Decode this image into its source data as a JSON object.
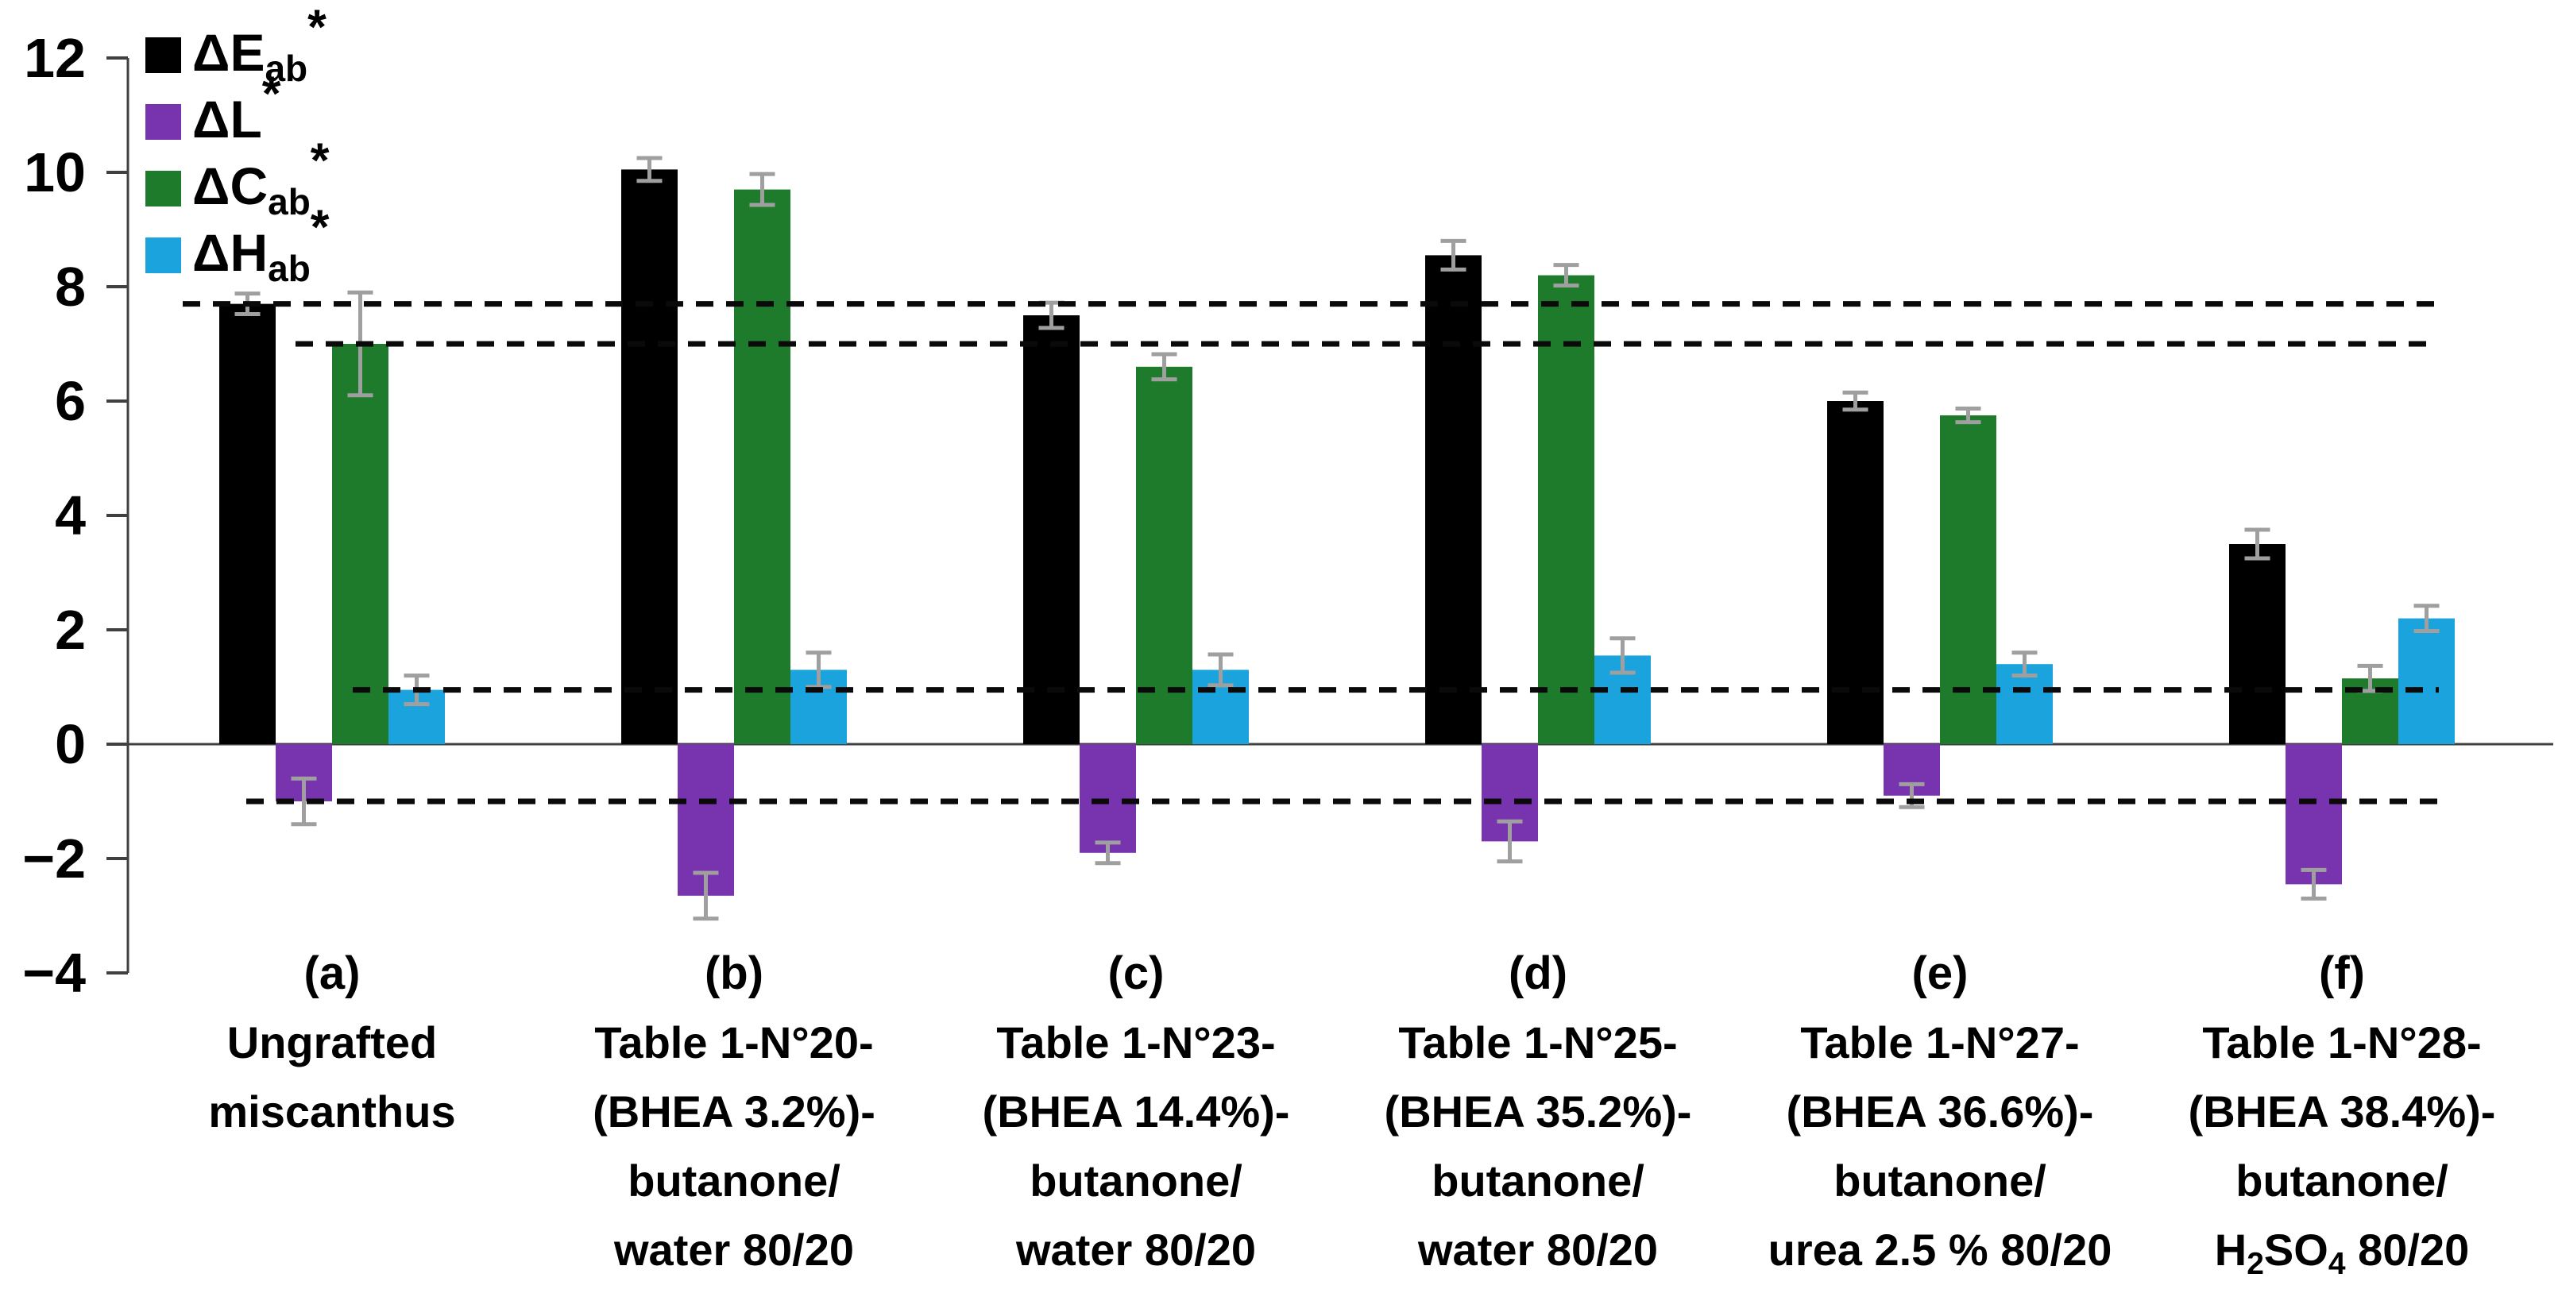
{
  "figure": {
    "background": "#ffffff",
    "description_colors": {
      "axis": "#404040",
      "reference_line": "#0a0a0a",
      "error_bar": "#9f9f9f",
      "text": "#000000"
    }
  },
  "chart_data": {
    "type": "bar",
    "orientation": "vertical",
    "title": "",
    "xlabel": "",
    "ylabel": "",
    "ylim": [
      -4,
      12
    ],
    "grid": false,
    "legend_position": "top-left-inside",
    "yticks": [
      {
        "v": 12,
        "label": "12"
      },
      {
        "v": 10,
        "label": "10"
      },
      {
        "v": 8,
        "label": "8"
      },
      {
        "v": 6,
        "label": "6"
      },
      {
        "v": 4,
        "label": "4"
      },
      {
        "v": 2,
        "label": "2"
      },
      {
        "v": 0,
        "label": "0"
      },
      {
        "v": -2,
        "label": "−2"
      },
      {
        "v": -4,
        "label": "−4"
      }
    ],
    "categories": [
      {
        "key": "a",
        "lines": [
          "(a)",
          "Ungrafted",
          "miscanthus"
        ]
      },
      {
        "key": "b",
        "lines": [
          "(b)",
          "Table 1-N°20-",
          "(BHEA 3.2%)-",
          "butanone/",
          "water 80/20"
        ]
      },
      {
        "key": "c",
        "lines": [
          "(c)",
          "Table 1-N°23-",
          "(BHEA 14.4%)-",
          "butanone/",
          "water 80/20"
        ]
      },
      {
        "key": "d",
        "lines": [
          "(d)",
          "Table 1-N°25-",
          "(BHEA 35.2%)-",
          "butanone/",
          "water 80/20"
        ]
      },
      {
        "key": "e",
        "lines": [
          "(e)",
          "Table 1-N°27-",
          "(BHEA 36.6%)-",
          "butanone/",
          "urea 2.5 % 80/20"
        ]
      },
      {
        "key": "f",
        "lines": [
          "(f)",
          "Table 1-N°28-",
          "(BHEA 38.4%)-",
          "butanone/",
          {
            "parts": [
              {
                "t": "H"
              },
              {
                "t": "2",
                "sub": true
              },
              {
                "t": "SO"
              },
              {
                "t": "4",
                "sub": true
              },
              {
                "t": " 80/20"
              }
            ]
          }
        ]
      }
    ],
    "series": [
      {
        "key": "delta-e-ab",
        "label_parts": [
          {
            "t": "ΔE"
          },
          {
            "t": "ab",
            "sub": true
          },
          {
            "t": "*",
            "sup": true
          }
        ],
        "color": "#000000",
        "values": [
          7.7,
          10.05,
          7.5,
          8.55,
          6.0,
          3.5
        ],
        "errors": [
          0.18,
          0.2,
          0.22,
          0.25,
          0.15,
          0.25
        ]
      },
      {
        "key": "delta-l",
        "label_parts": [
          {
            "t": "ΔL"
          },
          {
            "t": "*",
            "sup": true
          }
        ],
        "color": "#7833ae",
        "values": [
          -1.0,
          -2.65,
          -1.9,
          -1.7,
          -0.9,
          -2.45
        ],
        "errors": [
          0.4,
          0.4,
          0.18,
          0.35,
          0.2,
          0.25
        ]
      },
      {
        "key": "delta-c-ab",
        "label_parts": [
          {
            "t": "ΔC"
          },
          {
            "t": "ab",
            "sub": true
          },
          {
            "t": "*",
            "sup": true
          }
        ],
        "color": "#1e7b2c",
        "values": [
          7.0,
          9.7,
          6.6,
          8.2,
          5.75,
          1.15
        ],
        "errors": [
          0.9,
          0.27,
          0.22,
          0.18,
          0.12,
          0.22
        ]
      },
      {
        "key": "delta-h-ab",
        "label_parts": [
          {
            "t": "ΔH"
          },
          {
            "t": "ab",
            "sub": true
          },
          {
            "t": "*",
            "sup": true
          }
        ],
        "color": "#1aa3dc",
        "values": [
          0.95,
          1.3,
          1.3,
          1.55,
          1.4,
          2.2
        ],
        "errors": [
          0.25,
          0.3,
          0.27,
          0.3,
          0.2,
          0.22
        ]
      }
    ],
    "reference_lines": [
      {
        "v": 7.7,
        "series": "delta-e-ab",
        "style": "dashed",
        "x_start": 230
      },
      {
        "v": 7.0,
        "series": "delta-c-ab",
        "style": "dashed",
        "x_start": 372
      },
      {
        "v": 0.95,
        "series": "delta-h-ab",
        "style": "dashed",
        "x_start": 444
      },
      {
        "v": -1.0,
        "series": "delta-l",
        "style": "dashed",
        "x_start": 310
      }
    ]
  }
}
